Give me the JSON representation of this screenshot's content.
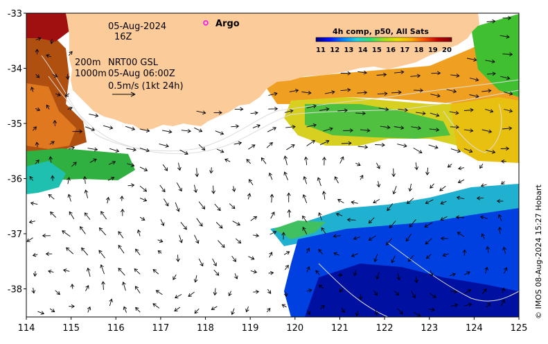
{
  "map": {
    "date": "05-Aug-2024",
    "time": "16Z",
    "depth_line1": "200m",
    "depth_line2": "1000m",
    "product_line1": "NRT00 GSL",
    "product_line2": "05-Aug 06:00Z",
    "scale_label": "0.5m/s (1kt 24h)",
    "legend_argo": "Argo",
    "credit": "© IMOS 08-Aug-2024 15:27 Hobart",
    "x_ticks": [
      "114",
      "115",
      "116",
      "117",
      "118",
      "119",
      "120",
      "121",
      "122",
      "123",
      "124",
      "125"
    ],
    "y_ticks": [
      "-33",
      "-34",
      "-35",
      "-36",
      "-37",
      "-38"
    ],
    "colors": {
      "land": "#fccb9a",
      "sea_nodata": "#ffffff",
      "argo_marker": "#ff00ff",
      "arrow": "#000000",
      "contour": "#dddddd"
    }
  },
  "colorbar": {
    "title": "4h comp, p50, All Sats",
    "ticks": [
      "11",
      "12",
      "13",
      "14",
      "15",
      "16",
      "17",
      "18",
      "19",
      "20"
    ],
    "range": [
      11,
      20
    ],
    "colors": [
      "#00007f",
      "#0010ff",
      "#0080ff",
      "#20d0e0",
      "#30e070",
      "#a0e020",
      "#e8e000",
      "#ffb000",
      "#ff5000",
      "#c00000",
      "#800000"
    ]
  }
}
